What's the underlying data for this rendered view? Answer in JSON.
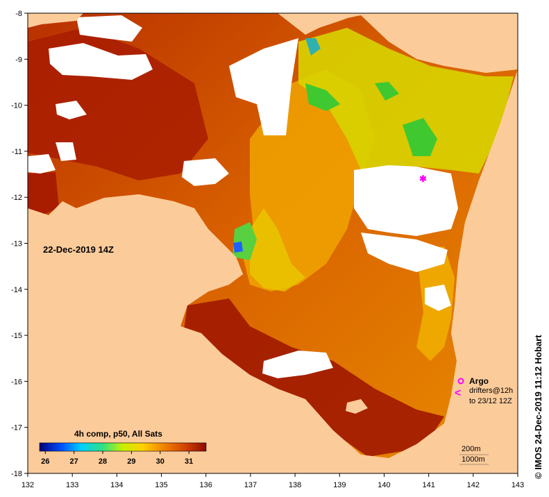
{
  "map": {
    "date": "22-Dec-2019 14Z",
    "product": "4h comp, p50, All Sats",
    "credit": "© IMOS 24-Dec-2019 11:12 Hobart",
    "x_ticks": [
      "132",
      "133",
      "134",
      "135",
      "136",
      "137",
      "138",
      "139",
      "140",
      "141",
      "142",
      "143"
    ],
    "y_ticks": [
      "-8",
      "-9",
      "-10",
      "-11",
      "-12",
      "-13",
      "-14",
      "-15",
      "-16",
      "-17",
      "-18"
    ],
    "lon_range": [
      132,
      143
    ],
    "lat_range": [
      -18,
      -8
    ]
  },
  "colorbar": {
    "ticks": [
      "26",
      "27",
      "28",
      "29",
      "30",
      "31"
    ],
    "range": [
      25.8,
      31.6
    ]
  },
  "legend": {
    "argo": "Argo",
    "drifters_line1": "drifters@12h",
    "drifters_line2": "to 23/12 12Z",
    "drifter_symbol": "<",
    "iso_200": "200m",
    "iso_1000": "1000m"
  },
  "colors": {
    "land": "#fccb9a",
    "sst_hot": "#a81c00",
    "sst_warm": "#e06a00",
    "sst_mid": "#f2a800",
    "sst_cool": "#e8e000",
    "sst_green": "#40c830",
    "cloud": "#ffffff",
    "marker": "#ff00ff"
  }
}
